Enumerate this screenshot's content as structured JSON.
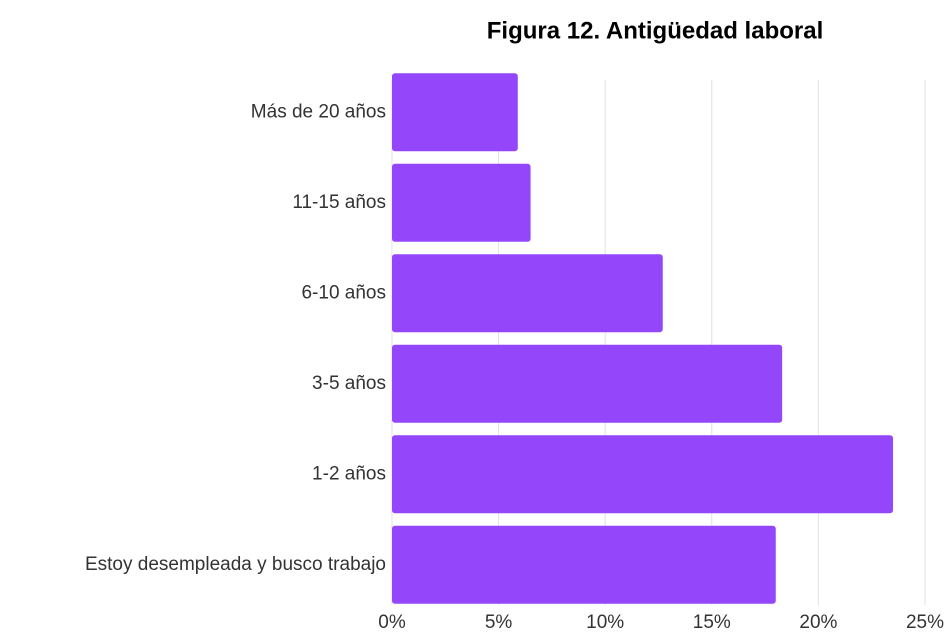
{
  "chart_data": {
    "type": "barh",
    "title": "Figura 12. Antigüedad laboral",
    "categories": [
      "Más de 20 años",
      "11-15 años",
      "6-10 años",
      "3-5 años",
      "1-2 años",
      "Estoy desempleada y busco trabajo"
    ],
    "values": [
      5.9,
      6.5,
      12.7,
      18.3,
      23.5,
      18.0
    ],
    "color": "#9446fb",
    "xlim": [
      0,
      25
    ],
    "xticks": [
      {
        "value": 0,
        "label": "0%"
      },
      {
        "value": 5,
        "label": "5%"
      },
      {
        "value": 10,
        "label": "10%"
      },
      {
        "value": 15,
        "label": "15%"
      },
      {
        "value": 20,
        "label": "20%"
      },
      {
        "value": 25,
        "label": "25%"
      }
    ],
    "grid": true
  }
}
